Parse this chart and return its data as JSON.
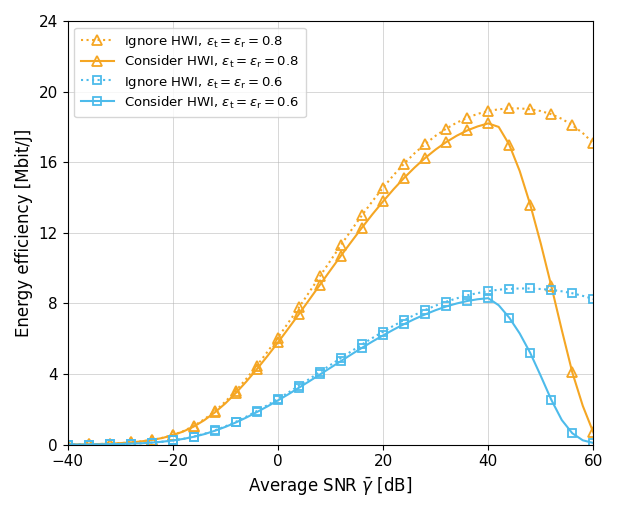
{
  "title": "",
  "xlabel": "Average SNR $\\bar{\\gamma}$ [dB]",
  "ylabel": "Energy efficiency [Mbit/J]",
  "xlim": [
    -40,
    60
  ],
  "ylim": [
    0,
    24
  ],
  "xticks": [
    -40,
    -20,
    0,
    20,
    40,
    60
  ],
  "yticks": [
    0,
    4,
    8,
    12,
    16,
    20,
    24
  ],
  "snr_db": [
    -40,
    -38,
    -36,
    -34,
    -32,
    -30,
    -28,
    -26,
    -24,
    -22,
    -20,
    -18,
    -16,
    -14,
    -12,
    -10,
    -8,
    -6,
    -4,
    -2,
    0,
    2,
    4,
    6,
    8,
    10,
    12,
    14,
    16,
    18,
    20,
    22,
    24,
    26,
    28,
    30,
    32,
    34,
    36,
    38,
    40,
    42,
    44,
    46,
    48,
    50,
    52,
    54,
    56,
    58,
    60
  ],
  "orange_ignore": [
    0.01,
    0.02,
    0.03,
    0.04,
    0.06,
    0.09,
    0.13,
    0.19,
    0.27,
    0.39,
    0.55,
    0.77,
    1.07,
    1.44,
    1.9,
    2.44,
    3.06,
    3.74,
    4.48,
    5.26,
    6.07,
    6.92,
    7.78,
    8.66,
    9.55,
    10.43,
    11.31,
    12.17,
    13.0,
    13.8,
    14.56,
    15.27,
    15.92,
    16.51,
    17.03,
    17.5,
    17.9,
    18.24,
    18.52,
    18.74,
    18.9,
    19.0,
    19.05,
    19.05,
    19.0,
    18.9,
    18.72,
    18.46,
    18.1,
    17.65,
    17.08
  ],
  "orange_consider": [
    0.01,
    0.02,
    0.03,
    0.04,
    0.06,
    0.09,
    0.13,
    0.19,
    0.27,
    0.38,
    0.54,
    0.75,
    1.03,
    1.39,
    1.83,
    2.34,
    2.93,
    3.58,
    4.28,
    5.02,
    5.79,
    6.59,
    7.4,
    8.23,
    9.06,
    9.89,
    10.71,
    11.51,
    12.3,
    13.06,
    13.78,
    14.47,
    15.11,
    15.7,
    16.24,
    16.72,
    17.14,
    17.5,
    17.8,
    18.03,
    18.2,
    18.0,
    17.0,
    15.5,
    13.6,
    11.4,
    9.0,
    6.5,
    4.1,
    2.2,
    0.7
  ],
  "blue_ignore": [
    0.01,
    0.01,
    0.01,
    0.02,
    0.03,
    0.04,
    0.06,
    0.08,
    0.12,
    0.17,
    0.24,
    0.33,
    0.46,
    0.62,
    0.81,
    1.04,
    1.3,
    1.59,
    1.91,
    2.24,
    2.59,
    2.96,
    3.34,
    3.73,
    4.12,
    4.52,
    4.91,
    5.3,
    5.68,
    6.05,
    6.4,
    6.74,
    7.06,
    7.35,
    7.63,
    7.88,
    8.1,
    8.29,
    8.46,
    8.59,
    8.7,
    8.78,
    8.83,
    8.85,
    8.85,
    8.82,
    8.77,
    8.69,
    8.58,
    8.43,
    8.26
  ],
  "blue_consider": [
    0.01,
    0.01,
    0.01,
    0.02,
    0.03,
    0.04,
    0.06,
    0.08,
    0.12,
    0.17,
    0.24,
    0.33,
    0.45,
    0.6,
    0.79,
    1.01,
    1.26,
    1.54,
    1.85,
    2.17,
    2.51,
    2.86,
    3.23,
    3.6,
    3.98,
    4.36,
    4.74,
    5.12,
    5.49,
    5.85,
    6.19,
    6.52,
    6.83,
    7.12,
    7.38,
    7.62,
    7.83,
    8.0,
    8.14,
    8.24,
    8.3,
    7.9,
    7.2,
    6.3,
    5.2,
    3.9,
    2.55,
    1.4,
    0.65,
    0.25,
    0.1
  ],
  "orange_color": "#F5A623",
  "blue_color": "#4DBBEB",
  "legend_labels": [
    "Ignore HWI, $\\varepsilon_{\\mathrm{t}} = \\varepsilon_{\\mathrm{r}} = 0.8$",
    "Consider HWI, $\\varepsilon_{\\mathrm{t}} = \\varepsilon_{\\mathrm{r}} = 0.8$",
    "Ignore HWI, $\\varepsilon_{\\mathrm{t}} = \\varepsilon_{\\mathrm{r}} = 0.6$",
    "Consider HWI, $\\varepsilon_{\\mathrm{t}} = \\varepsilon_{\\mathrm{r}} = 0.6$"
  ],
  "marker_every": 2,
  "marker_size": 7,
  "line_width": 1.5
}
